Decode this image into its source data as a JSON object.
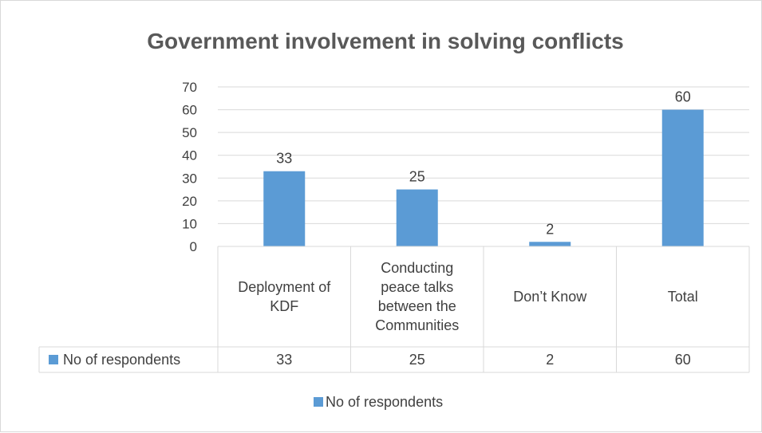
{
  "chart_data": {
    "type": "bar",
    "title": "Government involvement in solving conflicts",
    "categories": [
      [
        "Deployment of",
        "KDF"
      ],
      [
        "Conducting",
        "peace talks",
        "between the",
        "Communities"
      ],
      [
        "Don’t Know"
      ],
      [
        "Total"
      ]
    ],
    "series": [
      {
        "name": "No of respondents",
        "values": [
          33,
          25,
          2,
          60
        ],
        "color": "#5b9bd5"
      }
    ],
    "ylim": [
      0,
      70
    ],
    "yticks": [
      0,
      10,
      20,
      30,
      40,
      50,
      60,
      70
    ],
    "data_labels": true,
    "grid": true,
    "data_table": true,
    "legend": "bottom"
  }
}
